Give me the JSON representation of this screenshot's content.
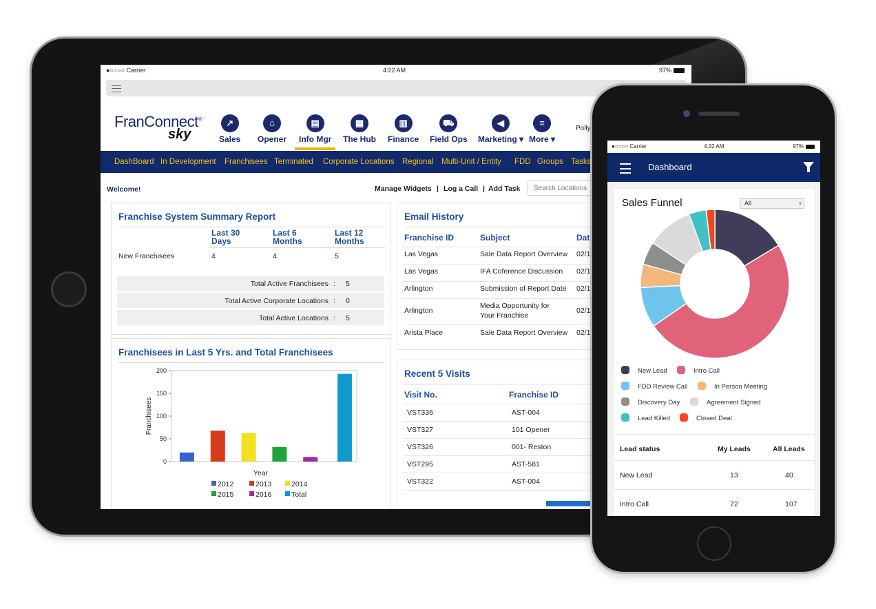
{
  "tablet": {
    "status": {
      "carrier": "●○○○○ Carrier",
      "time": "4:22 AM",
      "battery": "97%"
    },
    "logo": {
      "line1": "FranConnect",
      "reg": "®",
      "line2": "sky"
    },
    "modules": [
      {
        "label": "Sales",
        "icon": "trend-up-icon",
        "glyph": "↗"
      },
      {
        "label": "Opener",
        "icon": "store-icon",
        "glyph": "⌂"
      },
      {
        "label": "Info Mgr",
        "icon": "document-icon",
        "glyph": "▤"
      },
      {
        "label": "The Hub",
        "icon": "book-icon",
        "glyph": "▦"
      },
      {
        "label": "Finance",
        "icon": "bar-chart-icon",
        "glyph": "▥"
      },
      {
        "label": "Field Ops",
        "icon": "truck-icon",
        "glyph": "⛟"
      },
      {
        "label": "Marketing ▾",
        "icon": "megaphone-icon",
        "glyph": "◀"
      },
      {
        "label": "More ▾",
        "icon": "menu-icon",
        "glyph": "≡"
      }
    ],
    "user": "Polly",
    "subnav": [
      "DashBoard",
      "In Development",
      "Franchisees",
      "Terminated",
      "Corporate Locations",
      "Regional",
      "Multi-Unit / Entity",
      "FDD",
      "Groups",
      "Tasks"
    ],
    "welcome": "Welcome!",
    "links": {
      "manage": "Manage Widgets",
      "sep1": "|",
      "log": "Log a Call",
      "sep2": "|",
      "task": "Add Task"
    },
    "search_placeholder": "Search Locations",
    "summary": {
      "title": "Franchise System Summary Report",
      "col1": "Last 30 Days",
      "col2": "Last 6 Months",
      "col3": "Last 12 Months",
      "row_label": "New Franchisees",
      "v1": "4",
      "v2": "4",
      "v3": "5",
      "totals": [
        {
          "label": "Total Active Franchisees",
          "sep": ":",
          "value": "5"
        },
        {
          "label": "Total Active Corporate Locations",
          "sep": ":",
          "value": "0"
        },
        {
          "label": "Total Active Locations",
          "sep": ":",
          "value": "5"
        }
      ]
    },
    "email": {
      "title": "Email History",
      "headers": [
        "Franchise ID",
        "Subject",
        "Dat"
      ],
      "rows": [
        {
          "id": "Las Vegas",
          "subject": "Sale Data Report Overview",
          "subject2": "",
          "date": "02/1"
        },
        {
          "id": "Las Vegas",
          "subject": "IFA Coference Discussion",
          "subject2": "",
          "date": "02/1"
        },
        {
          "id": "Arlington",
          "subject": "Submission of Report Date",
          "subject2": "",
          "date": "02/1"
        },
        {
          "id": "Arlington",
          "subject": "Media Opportunity for",
          "subject2": "Your Franchise",
          "date": "02/1"
        },
        {
          "id": "Arista Place",
          "subject": "Sale Data Report Overview",
          "subject2": "",
          "date": "02/1"
        }
      ]
    },
    "visits": {
      "title": "Recent 5 Visits",
      "headers": [
        "Visit No.",
        "Franchise ID"
      ],
      "rows": [
        {
          "no": "VST336",
          "id": "AST-004"
        },
        {
          "no": "VST327",
          "id": "101 Opener"
        },
        {
          "no": "VST326",
          "id": "001- Reston"
        },
        {
          "no": "VST295",
          "id": "AST-581"
        },
        {
          "no": "VST322",
          "id": "AST-004"
        }
      ]
    },
    "chart_panel_title": "Franchisees in Last 5 Yrs. and Total Franchisees"
  },
  "chart_data": [
    {
      "type": "bar",
      "title": "Franchisees in Last 5 Yrs. and Total Franchisees",
      "xlabel": "Year",
      "ylabel": "Franchisees",
      "ylim": [
        0,
        200
      ],
      "yticks": [
        "0",
        "50",
        "100",
        "150",
        "200"
      ],
      "grid": false,
      "legend_position": "bottom",
      "categories": [
        "2012",
        "2013",
        "2014",
        "2015",
        "2016",
        "Total"
      ],
      "values": [
        20,
        68,
        63,
        32,
        10,
        193
      ],
      "colors": [
        "#3a63c9",
        "#d83a1c",
        "#f2e021",
        "#1fa33b",
        "#9b2aa8",
        "#0f9ccc"
      ]
    },
    {
      "type": "pie",
      "title": "Sales Funnel",
      "filter": "All",
      "categories": [
        "New Lead",
        "Intro Call",
        "FDD Review Call",
        "In Person Meeting",
        "Discovery Day",
        "Agreement Signed",
        "Lead Killed",
        "Closed Deal"
      ],
      "values": [
        13,
        39,
        7,
        4,
        4,
        8,
        3,
        1.5
      ],
      "colors": [
        "#403d5b",
        "#e0637a",
        "#6ec4ea",
        "#f2b77c",
        "#8e8e8e",
        "#dadada",
        "#3fc1c6",
        "#f2451b"
      ]
    }
  ],
  "phone": {
    "status": {
      "carrier": "●○○○○ Carrier",
      "time": "4:22 AM",
      "battery": "97%"
    },
    "header_title": "Dashboard",
    "lead_table": {
      "headers": [
        "Lead status",
        "My Leads",
        "All Leads"
      ],
      "rows": [
        {
          "status": "New Lead",
          "my": "13",
          "all": "40"
        },
        {
          "status": "Intro Call",
          "my": "72",
          "all": "107"
        }
      ]
    }
  }
}
